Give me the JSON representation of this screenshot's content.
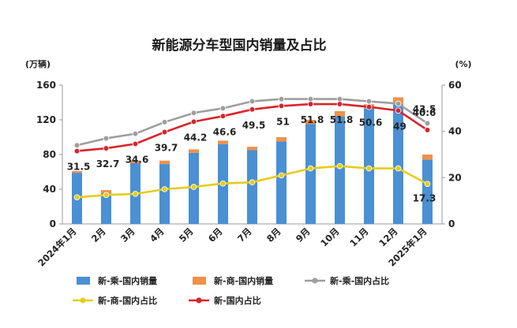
{
  "chart_data": {
    "type": "bar",
    "title": "新能源分车型国内销量及占比",
    "left_axis_unit": "(万辆)",
    "right_axis_unit": "(%)",
    "left_ylim": [
      0,
      160
    ],
    "left_ticks": [
      "0",
      "40",
      "80",
      "120",
      "160"
    ],
    "right_ylim": [
      0,
      60
    ],
    "right_ticks": [
      "0",
      "20",
      "40",
      "60"
    ],
    "categories": [
      "2024年1月",
      "2月",
      "3月",
      "4月",
      "5月",
      "6月",
      "7月",
      "8月",
      "9月",
      "10月",
      "11月",
      "12月",
      "2025年1月"
    ],
    "series": [
      {
        "name": "新-乘-国内销量",
        "kind": "bar",
        "axis": "left",
        "color": "#4a90d2",
        "values": [
          59,
          35,
          70,
          69,
          82,
          92,
          85,
          95,
          115,
          124,
          133,
          138,
          74
        ]
      },
      {
        "name": "新-商-国内销量",
        "kind": "bar-stack",
        "axis": "left",
        "color": "#f0914a",
        "values": [
          2,
          4,
          3,
          4,
          4,
          4,
          4,
          5,
          5,
          6,
          5,
          8,
          6
        ]
      },
      {
        "name": "新-乘-国内占比",
        "kind": "line",
        "axis": "right",
        "color": "#9e9e9e",
        "values": [
          34,
          37,
          39,
          44,
          48,
          50,
          53,
          54,
          54,
          54,
          53,
          52,
          43.5
        ],
        "labels": [
          "",
          "",
          "",
          "",
          "",
          "",
          "",
          "",
          "",
          "",
          "",
          "",
          "43.5"
        ]
      },
      {
        "name": "新-商-国内占比",
        "kind": "line",
        "axis": "right",
        "color": "#e6cc1c",
        "values": [
          11.5,
          12.5,
          13,
          15,
          16,
          17.5,
          18,
          21,
          24,
          25,
          24,
          24,
          17.3
        ],
        "labels": [
          "",
          "",
          "",
          "",
          "",
          "",
          "",
          "",
          "",
          "",
          "",
          "",
          "17.3"
        ]
      },
      {
        "name": "新-国内占比",
        "kind": "line",
        "axis": "right",
        "color": "#d8242a",
        "values": [
          31.5,
          32.7,
          34.6,
          39.7,
          44.2,
          46.6,
          49.5,
          51,
          51.8,
          51.8,
          50.6,
          49,
          40.6
        ],
        "labels": [
          "31.5",
          "32.7",
          "34.6",
          "39.7",
          "44.2",
          "46.6",
          "49.5",
          "51",
          "51.8",
          "51.8",
          "50.6",
          "49",
          "40.6"
        ]
      }
    ],
    "grid": false,
    "legend_position": "bottom"
  }
}
